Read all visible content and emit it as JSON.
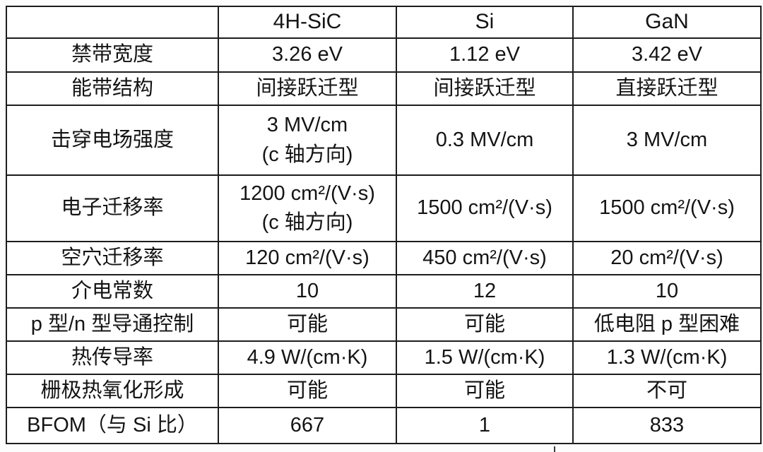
{
  "page": {
    "background_color": "#fcfcfc",
    "table_border_color": "#1d1d1d",
    "text_color": "#141414"
  },
  "table": {
    "header": [
      "",
      "4H-SiC",
      "Si",
      "GaN"
    ],
    "rows": [
      {
        "label": "禁带宽度",
        "values": [
          "3.26 eV",
          "1.12 eV",
          "3.42 eV"
        ]
      },
      {
        "label": "能带结构",
        "values": [
          "间接跃迁型",
          "间接跃迁型",
          "直接跃迁型"
        ]
      },
      {
        "label": "击穿电场强度",
        "values": [
          "3 MV/cm\n(c 轴方向)",
          "0.3 MV/cm",
          "3 MV/cm"
        ]
      },
      {
        "label": "电子迁移率",
        "values": [
          "1200 cm²/(V·s)\n(c 轴方向)",
          "1500 cm²/(V·s)",
          "1500 cm²/(V·s)"
        ]
      },
      {
        "label": "空穴迁移率",
        "values": [
          "120 cm²/(V·s)",
          "450 cm²/(V·s)",
          "20 cm²/(V·s)"
        ]
      },
      {
        "label": "介电常数",
        "values": [
          "10",
          "12",
          "10"
        ]
      },
      {
        "label": "p 型/n 型导通控制",
        "values": [
          "可能",
          "可能",
          "低电阻 p 型困难"
        ]
      },
      {
        "label": "热传导率",
        "values": [
          "4.9 W/(cm·K)",
          "1.5 W/(cm·K)",
          "1.3 W/(cm·K)"
        ]
      },
      {
        "label": "栅极热氧化形成",
        "values": [
          "可能",
          "可能",
          "不可"
        ]
      },
      {
        "label": "BFOM（与 Si 比）",
        "values": [
          "667",
          "1",
          "833"
        ]
      }
    ]
  }
}
